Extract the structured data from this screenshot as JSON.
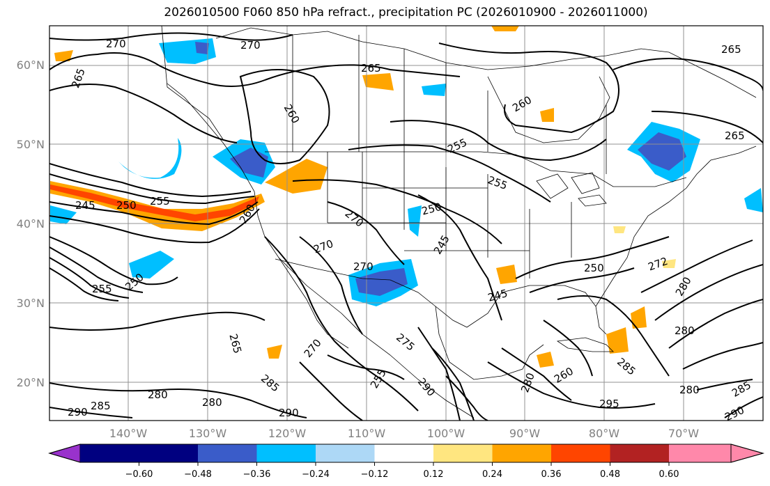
{
  "title": "2026010500 F060 850 hPa refract., precipitation PC (2026010900 - 2026011000)",
  "latitudes": [
    "60°N",
    "50°N",
    "40°N",
    "30°N",
    "20°N"
  ],
  "longitudes": [
    "140°W",
    "130°W",
    "120°W",
    "110°W",
    "100°W",
    "90°W",
    "80°W",
    "70°W"
  ],
  "colorbar": {
    "ticks": [
      "−0.60",
      "−0.48",
      "−0.36",
      "−0.24",
      "−0.12",
      "0.12",
      "0.24",
      "0.36",
      "0.48",
      "0.60"
    ],
    "colors": [
      "#9932CC",
      "#000080",
      "#3A5CC9",
      "#00BFFF",
      "#ADD8F6",
      "#FFFFFF",
      "#FFE680",
      "#FFA500",
      "#FF4500",
      "#B22222",
      "#FF88AA"
    ]
  },
  "contour_labels": [
    "270",
    "270",
    "265",
    "265",
    "260",
    "260",
    "265",
    "265",
    "255",
    "255",
    "250",
    "245",
    "250",
    "255",
    "260",
    "270",
    "270",
    "245",
    "250",
    "255",
    "270",
    "250",
    "245",
    "272",
    "280",
    "280",
    "265",
    "270",
    "255",
    "280",
    "285",
    "290",
    "280",
    "280",
    "290",
    "285",
    "290",
    "295",
    "285",
    "290",
    "285",
    "275",
    "280",
    "260"
  ]
}
